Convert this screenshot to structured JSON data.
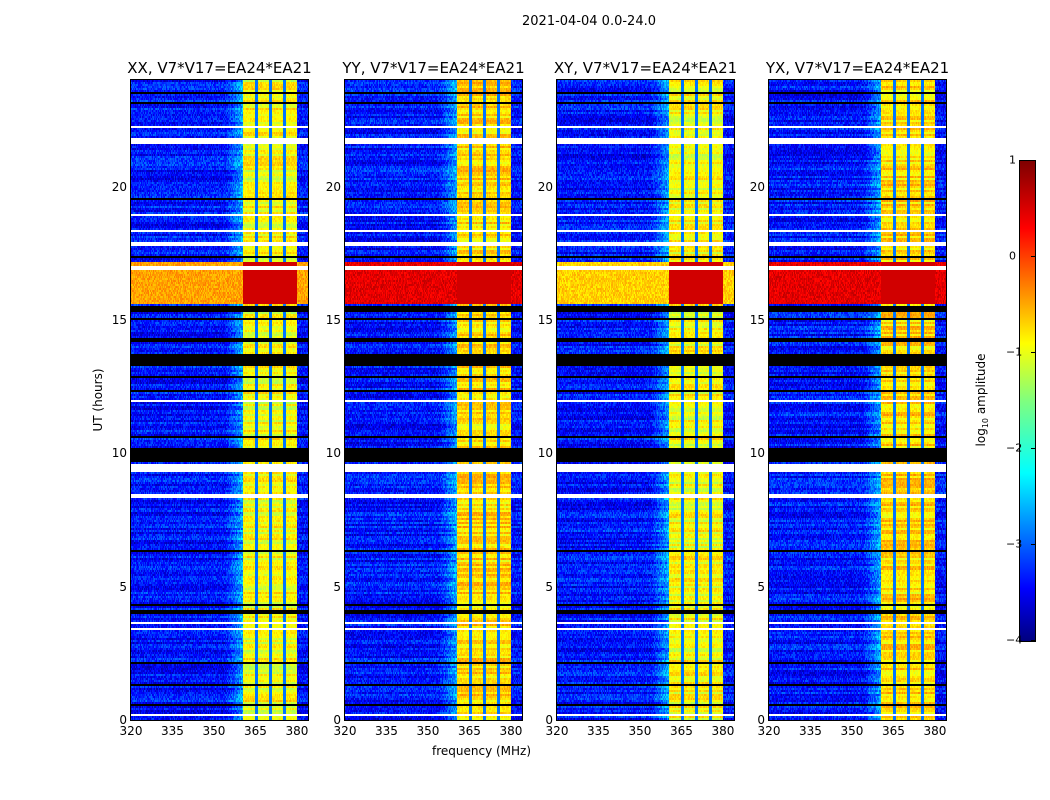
{
  "chart_data": {
    "type": "heatmap",
    "title": "2021-04-04 0.0-24.0",
    "panels": [
      {
        "title": "XX, V7*V17=EA24*EA21",
        "rfi_strength": 0.6
      },
      {
        "title": "YY, V7*V17=EA24*EA21",
        "rfi_strength": 1.0
      },
      {
        "title": "XY, V7*V17=EA24*EA21",
        "rfi_strength": 0.5
      },
      {
        "title": "YX, V7*V17=EA24*EA21",
        "rfi_strength": 1.0
      }
    ],
    "xlabel": "frequency (MHz)",
    "ylabel": "UT (hours)",
    "xlim": [
      320,
      384
    ],
    "ylim": [
      0,
      24
    ],
    "xticks": [
      "320",
      "335",
      "350",
      "365",
      "380"
    ],
    "yticks": [
      "0",
      "5",
      "10",
      "15",
      "20"
    ],
    "colorbar": {
      "label": "log10 amplitude",
      "label_main": "log",
      "label_sub": "10",
      "label_rest": " amplitude",
      "range": [
        -4,
        1
      ],
      "ticks": [
        "1",
        "0",
        "−1",
        "−2",
        "−3",
        "−4"
      ],
      "colormap": "jet"
    },
    "background_log_amp": -3.3,
    "bright_band_mhz": [
      360.5,
      380
    ],
    "bright_band_log_amp": -0.9,
    "subband_gaps_mhz": [
      365.5,
      370.5,
      375.5
    ],
    "rfi_event_hours": [
      15.6,
      17.2
    ],
    "flagged_white_hours": [
      [
        0.15,
        0.2
      ],
      [
        0.35,
        0.4
      ],
      [
        3.4,
        3.45
      ],
      [
        3.6,
        3.65
      ],
      [
        8.3,
        8.5
      ],
      [
        9.3,
        9.6
      ],
      [
        11.9,
        12.0
      ],
      [
        16.9,
        17.0
      ],
      [
        17.8,
        17.9
      ],
      [
        18.3,
        18.35
      ],
      [
        18.9,
        18.95
      ],
      [
        21.6,
        21.85
      ],
      [
        22.2,
        22.25
      ]
    ],
    "dropout_black_hours": [
      [
        0.55,
        0.6
      ],
      [
        1.3,
        1.35
      ],
      [
        2.1,
        2.15
      ],
      [
        4.0,
        4.1
      ],
      [
        4.3,
        4.35
      ],
      [
        5.0,
        5.05
      ],
      [
        6.3,
        6.35
      ],
      [
        7.4,
        7.45
      ],
      [
        9.7,
        10.2
      ],
      [
        10.6,
        10.65
      ],
      [
        11.3,
        11.35
      ],
      [
        12.3,
        12.35
      ],
      [
        12.8,
        12.9
      ],
      [
        13.3,
        13.7
      ],
      [
        14.2,
        14.3
      ],
      [
        14.6,
        14.65
      ],
      [
        15.0,
        15.1
      ],
      [
        15.3,
        15.5
      ],
      [
        17.3,
        17.4
      ],
      [
        19.5,
        19.55
      ],
      [
        22.4,
        22.45
      ],
      [
        23.1,
        23.15
      ],
      [
        23.5,
        23.55
      ]
    ]
  }
}
